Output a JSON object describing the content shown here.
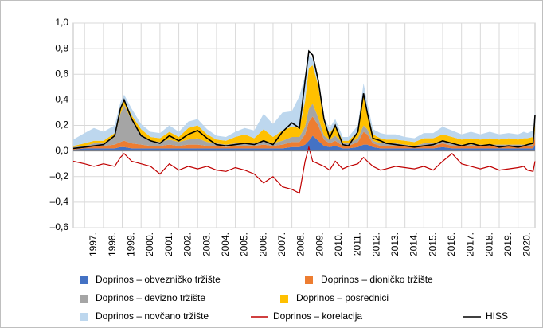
{
  "chart_data": {
    "type": "area",
    "x": [
      1996.4,
      1997.0,
      1997.5,
      1998.0,
      1998.6,
      1998.9,
      1999.1,
      1999.5,
      2000.0,
      2000.5,
      2001.0,
      2001.5,
      2002.0,
      2002.5,
      2003.0,
      2003.5,
      2004.0,
      2004.5,
      2005.0,
      2005.5,
      2006.0,
      2006.5,
      2007.0,
      2007.5,
      2008.0,
      2008.4,
      2008.7,
      2008.9,
      2009.1,
      2009.4,
      2009.7,
      2010.0,
      2010.3,
      2010.7,
      2011.0,
      2011.5,
      2011.8,
      2012.0,
      2012.3,
      2012.7,
      2013.0,
      2013.5,
      2014.0,
      2014.5,
      2015.0,
      2015.5,
      2016.0,
      2016.5,
      2017.0,
      2017.5,
      2018.0,
      2018.5,
      2019.0,
      2019.5,
      2020.0,
      2020.3,
      2020.5,
      2020.8,
      2020.9
    ],
    "series": [
      {
        "name": "Doprinos – obvezničko tržište",
        "color": "#4472c4",
        "kind": "area",
        "values": [
          0.01,
          0.02,
          0.02,
          0.02,
          0.02,
          0.03,
          0.03,
          0.02,
          0.02,
          0.02,
          0.02,
          0.02,
          0.02,
          0.02,
          0.02,
          0.02,
          0.02,
          0.02,
          0.02,
          0.02,
          0.02,
          0.02,
          0.02,
          0.02,
          0.03,
          0.03,
          0.05,
          0.08,
          0.12,
          0.08,
          0.04,
          0.03,
          0.04,
          0.02,
          0.02,
          0.03,
          0.05,
          0.05,
          0.03,
          0.02,
          0.02,
          0.02,
          0.02,
          0.02,
          0.02,
          0.02,
          0.03,
          0.02,
          0.02,
          0.02,
          0.02,
          0.02,
          0.02,
          0.02,
          0.02,
          0.02,
          0.02,
          0.02,
          0.05
        ]
      },
      {
        "name": "Doprinos – dioničko tržište",
        "color": "#ed7d31",
        "kind": "area",
        "values": [
          0.01,
          0.01,
          0.02,
          0.02,
          0.03,
          0.04,
          0.05,
          0.04,
          0.03,
          0.02,
          0.02,
          0.03,
          0.02,
          0.03,
          0.03,
          0.02,
          0.02,
          0.01,
          0.02,
          0.02,
          0.02,
          0.03,
          0.02,
          0.03,
          0.04,
          0.04,
          0.08,
          0.15,
          0.15,
          0.12,
          0.05,
          0.03,
          0.04,
          0.02,
          0.02,
          0.04,
          0.1,
          0.08,
          0.03,
          0.02,
          0.02,
          0.02,
          0.02,
          0.01,
          0.02,
          0.02,
          0.03,
          0.02,
          0.02,
          0.02,
          0.02,
          0.02,
          0.02,
          0.02,
          0.02,
          0.02,
          0.02,
          0.02,
          0.06
        ]
      },
      {
        "name": "Doprinos – devizno tržište",
        "color": "#a5a5a5",
        "kind": "area",
        "values": [
          0.01,
          0.01,
          0.02,
          0.02,
          0.06,
          0.22,
          0.28,
          0.18,
          0.08,
          0.04,
          0.03,
          0.04,
          0.03,
          0.04,
          0.05,
          0.03,
          0.02,
          0.02,
          0.02,
          0.02,
          0.02,
          0.03,
          0.02,
          0.03,
          0.04,
          0.04,
          0.06,
          0.1,
          0.1,
          0.06,
          0.03,
          0.03,
          0.04,
          0.02,
          0.02,
          0.03,
          0.05,
          0.04,
          0.02,
          0.02,
          0.02,
          0.02,
          0.01,
          0.01,
          0.02,
          0.02,
          0.02,
          0.02,
          0.01,
          0.01,
          0.01,
          0.01,
          0.01,
          0.01,
          0.01,
          0.01,
          0.01,
          0.01,
          0.05
        ]
      },
      {
        "name": "Doprinos – posrednici",
        "color": "#ffc000",
        "kind": "area",
        "values": [
          0.01,
          0.02,
          0.02,
          0.02,
          0.03,
          0.04,
          0.04,
          0.04,
          0.04,
          0.03,
          0.03,
          0.06,
          0.04,
          0.09,
          0.1,
          0.06,
          0.03,
          0.03,
          0.05,
          0.07,
          0.04,
          0.09,
          0.05,
          0.08,
          0.08,
          0.07,
          0.2,
          0.32,
          0.3,
          0.25,
          0.1,
          0.05,
          0.08,
          0.02,
          0.02,
          0.05,
          0.25,
          0.15,
          0.05,
          0.04,
          0.03,
          0.03,
          0.03,
          0.03,
          0.04,
          0.04,
          0.05,
          0.05,
          0.04,
          0.05,
          0.04,
          0.05,
          0.04,
          0.05,
          0.04,
          0.05,
          0.05,
          0.06,
          0.1
        ]
      },
      {
        "name": "Doprinos – novčano tržište",
        "color": "#bdd7ee",
        "kind": "area",
        "values": [
          0.05,
          0.08,
          0.1,
          0.07,
          0.06,
          0.05,
          0.04,
          0.05,
          0.04,
          0.04,
          0.04,
          0.05,
          0.04,
          0.05,
          0.05,
          0.04,
          0.03,
          0.03,
          0.04,
          0.05,
          0.06,
          0.12,
          0.1,
          0.14,
          0.12,
          0.25,
          0.2,
          0.1,
          0.05,
          0.04,
          0.04,
          0.04,
          0.05,
          0.03,
          0.03,
          0.05,
          0.08,
          0.06,
          0.04,
          0.04,
          0.04,
          0.04,
          0.03,
          0.03,
          0.04,
          0.04,
          0.06,
          0.05,
          0.04,
          0.05,
          0.04,
          0.05,
          0.04,
          0.04,
          0.04,
          0.05,
          0.04,
          0.05,
          0.05
        ]
      },
      {
        "name": "Doprinos – korelacija",
        "color": "#c00000",
        "kind": "line",
        "values": [
          -0.08,
          -0.1,
          -0.12,
          -0.1,
          -0.12,
          -0.05,
          -0.02,
          -0.08,
          -0.1,
          -0.12,
          -0.18,
          -0.1,
          -0.15,
          -0.12,
          -0.14,
          -0.12,
          -0.15,
          -0.16,
          -0.13,
          -0.15,
          -0.18,
          -0.25,
          -0.2,
          -0.28,
          -0.3,
          -0.33,
          -0.08,
          0.03,
          -0.08,
          -0.1,
          -0.12,
          -0.15,
          -0.08,
          -0.14,
          -0.12,
          -0.1,
          -0.05,
          -0.08,
          -0.12,
          -0.15,
          -0.14,
          -0.12,
          -0.13,
          -0.14,
          -0.12,
          -0.15,
          -0.08,
          -0.02,
          -0.1,
          -0.12,
          -0.14,
          -0.12,
          -0.15,
          -0.14,
          -0.13,
          -0.12,
          -0.15,
          -0.16,
          -0.08
        ]
      },
      {
        "name": "HISS",
        "color": "#000000",
        "kind": "line",
        "values": [
          0.02,
          0.03,
          0.04,
          0.05,
          0.12,
          0.33,
          0.4,
          0.25,
          0.12,
          0.08,
          0.06,
          0.12,
          0.08,
          0.13,
          0.16,
          0.1,
          0.05,
          0.04,
          0.05,
          0.06,
          0.05,
          0.08,
          0.05,
          0.15,
          0.22,
          0.18,
          0.55,
          0.78,
          0.75,
          0.55,
          0.25,
          0.1,
          0.2,
          0.05,
          0.04,
          0.15,
          0.45,
          0.3,
          0.1,
          0.08,
          0.06,
          0.05,
          0.04,
          0.03,
          0.04,
          0.05,
          0.08,
          0.06,
          0.04,
          0.06,
          0.04,
          0.05,
          0.03,
          0.04,
          0.03,
          0.04,
          0.05,
          0.06,
          0.28
        ]
      }
    ],
    "xlim": [
      1996.4,
      2020.9
    ],
    "xticks": [
      {
        "value": 1997,
        "label": "1997."
      },
      {
        "value": 1998,
        "label": "1998."
      },
      {
        "value": 1999,
        "label": "1999."
      },
      {
        "value": 2000,
        "label": "2000."
      },
      {
        "value": 2001,
        "label": "2001."
      },
      {
        "value": 2002,
        "label": "2002."
      },
      {
        "value": 2003,
        "label": "2003."
      },
      {
        "value": 2004,
        "label": "2004."
      },
      {
        "value": 2005,
        "label": "2005."
      },
      {
        "value": 2006,
        "label": "2006."
      },
      {
        "value": 2007,
        "label": "2007."
      },
      {
        "value": 2008,
        "label": "2008."
      },
      {
        "value": 2009,
        "label": "2009."
      },
      {
        "value": 2010,
        "label": "2010."
      },
      {
        "value": 2011,
        "label": "2011."
      },
      {
        "value": 2012,
        "label": "2012."
      },
      {
        "value": 2013,
        "label": "2013."
      },
      {
        "value": 2014,
        "label": "2014."
      },
      {
        "value": 2015,
        "label": "2015."
      },
      {
        "value": 2016,
        "label": "2016."
      },
      {
        "value": 2017,
        "label": "2017."
      },
      {
        "value": 2018,
        "label": "2018."
      },
      {
        "value": 2019,
        "label": "2019."
      },
      {
        "value": 2020,
        "label": "2020."
      }
    ],
    "ylim": [
      -0.6,
      1.0
    ],
    "yticks": [
      {
        "value": 1.0,
        "label": "1,0"
      },
      {
        "value": 0.8,
        "label": "0,8"
      },
      {
        "value": 0.6,
        "label": "0,6"
      },
      {
        "value": 0.4,
        "label": "0,4"
      },
      {
        "value": 0.2,
        "label": "0,2"
      },
      {
        "value": 0,
        "label": "0,0"
      },
      {
        "value": -0.2,
        "label": "–0,2"
      },
      {
        "value": -0.4,
        "label": "–0,4"
      },
      {
        "value": -0.6,
        "label": "–0,6"
      }
    ],
    "grid": true,
    "stacked": true,
    "legend": "bottom"
  }
}
